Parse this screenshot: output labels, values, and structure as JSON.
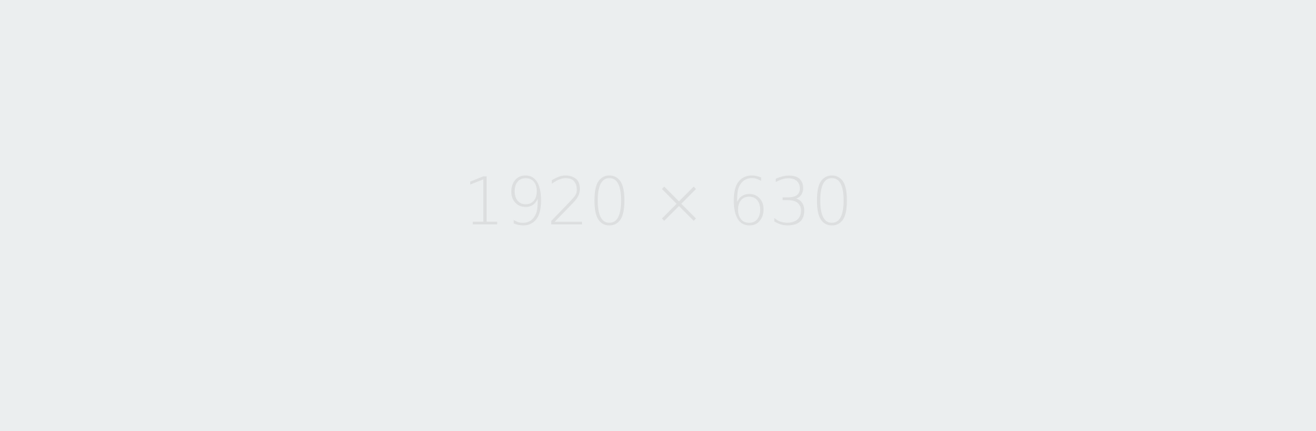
{
  "placeholder": {
    "label": "1920 × 630"
  },
  "colors": {
    "background": "#ebeeef",
    "text": "#dcdedf"
  }
}
